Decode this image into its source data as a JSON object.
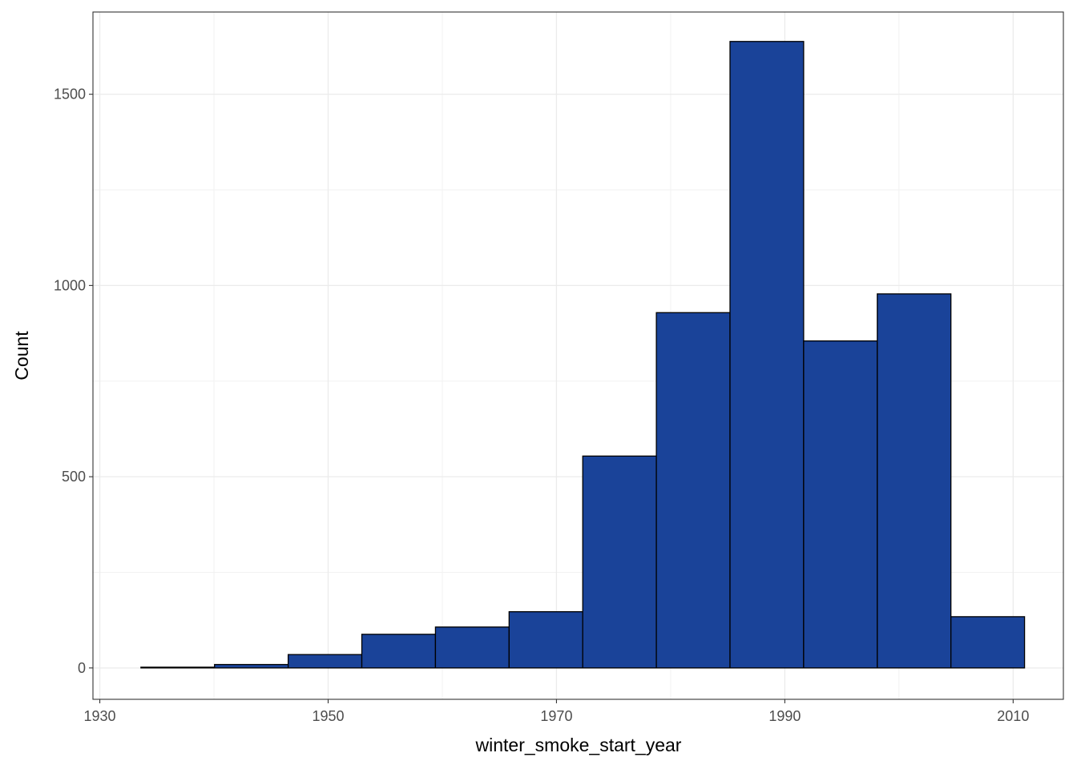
{
  "chart_data": {
    "type": "bar",
    "title": "",
    "xlabel": "winter_smoke_start_year",
    "ylabel": "Count",
    "xlim": [
      1929.4,
      2014.4
    ],
    "ylim": [
      -82,
      1715
    ],
    "x_ticks": [
      1930,
      1950,
      1970,
      1990,
      2010
    ],
    "y_ticks": [
      0,
      500,
      1000,
      1500
    ],
    "grid": true,
    "legend": "none",
    "bins": [
      {
        "x0": 1933.6,
        "x1": 1940.05,
        "value": 2
      },
      {
        "x0": 1940.05,
        "x1": 1946.5,
        "value": 9
      },
      {
        "x0": 1946.5,
        "x1": 1952.95,
        "value": 35
      },
      {
        "x0": 1952.95,
        "x1": 1959.4,
        "value": 88
      },
      {
        "x0": 1959.4,
        "x1": 1965.85,
        "value": 107
      },
      {
        "x0": 1965.85,
        "x1": 1972.3,
        "value": 147
      },
      {
        "x0": 1972.3,
        "x1": 1978.75,
        "value": 554
      },
      {
        "x0": 1978.75,
        "x1": 1985.2,
        "value": 929
      },
      {
        "x0": 1985.2,
        "x1": 1991.65,
        "value": 1638
      },
      {
        "x0": 1991.65,
        "x1": 1998.1,
        "value": 855
      },
      {
        "x0": 1998.1,
        "x1": 2004.55,
        "value": 978
      },
      {
        "x0": 2004.55,
        "x1": 2011.0,
        "value": 134
      }
    ],
    "colors": {
      "bar_fill": "#1a4399",
      "bar_stroke": "#000000",
      "grid_major": "#ebebeb",
      "grid_minor": "#f2f2f2",
      "panel_border": "#333333"
    }
  }
}
